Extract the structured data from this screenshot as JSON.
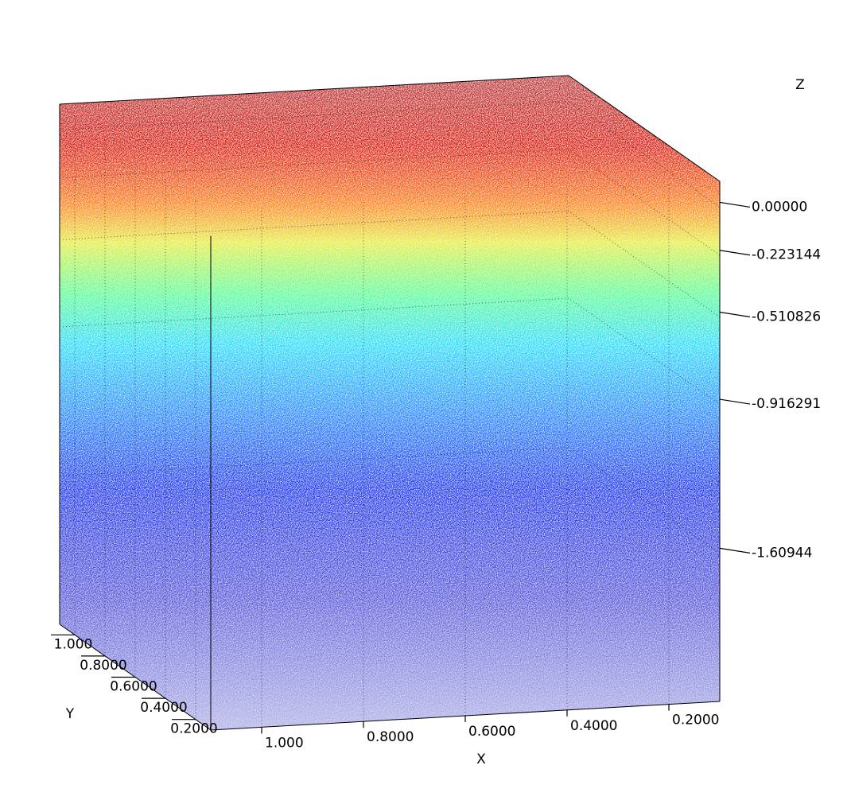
{
  "chart_data": {
    "type": "scatter3d",
    "x_label": "X",
    "y_label": "Y",
    "z_label": "Z",
    "xlim": [
      1.1,
      0.1
    ],
    "ylim": [
      0.1,
      1.1
    ],
    "zlim": [
      -2.3,
      0.12
    ],
    "xticks": [
      {
        "value": 1.0,
        "label": "1.000"
      },
      {
        "value": 0.8,
        "label": "0.8000"
      },
      {
        "value": 0.6,
        "label": "0.6000"
      },
      {
        "value": 0.4,
        "label": "0.4000"
      },
      {
        "value": 0.2,
        "label": "0.2000"
      }
    ],
    "yticks": [
      {
        "value": 1.0,
        "label": "1.000"
      },
      {
        "value": 0.8,
        "label": "0.8000"
      },
      {
        "value": 0.6,
        "label": "0.6000"
      },
      {
        "value": 0.4,
        "label": "0.4000"
      },
      {
        "value": 0.2,
        "label": "0.2000"
      }
    ],
    "zticks": [
      {
        "value": 0,
        "label": "0.00000"
      },
      -0.223144,
      -0.510826,
      -0.916291,
      -1.60944
    ],
    "grid": true
  }
}
